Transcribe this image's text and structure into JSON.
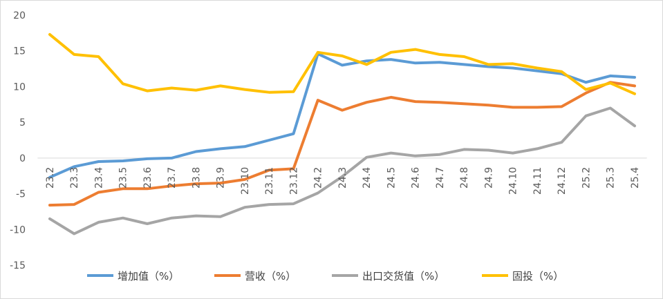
{
  "chart_data": {
    "type": "line",
    "categories": [
      "23.2",
      "23.3",
      "23.4",
      "23.5",
      "23.6",
      "23.7",
      "23.8",
      "23.9",
      "23.10",
      "23.11",
      "23.12",
      "24.2",
      "24.3",
      "24.4",
      "24.5",
      "24.6",
      "24.7",
      "24.8",
      "24.9",
      "24.10",
      "24.11",
      "24.12",
      "25.2",
      "25.3",
      "25.4"
    ],
    "ylim": [
      -15,
      20
    ],
    "yticks": [
      -15,
      -10,
      -5,
      0,
      5,
      10,
      15,
      20
    ],
    "grid": false,
    "legend_position": "bottom",
    "series": [
      {
        "name": "增加值（%）",
        "color": "#5b9bd5",
        "values": [
          -2.7,
          -1.2,
          -0.5,
          -0.4,
          -0.1,
          0.0,
          0.9,
          1.3,
          1.6,
          2.5,
          3.4,
          14.6,
          13.0,
          13.6,
          13.8,
          13.3,
          13.4,
          13.1,
          12.8,
          12.6,
          12.2,
          11.8,
          10.6,
          11.5,
          11.3
        ]
      },
      {
        "name": "营收（%）",
        "color": "#ed7d31",
        "values": [
          -6.6,
          -6.5,
          -4.8,
          -4.3,
          -4.3,
          -3.9,
          -3.6,
          -3.5,
          -3.0,
          -1.7,
          -1.5,
          8.1,
          6.7,
          7.8,
          8.5,
          7.9,
          7.8,
          7.6,
          7.4,
          7.1,
          7.1,
          7.2,
          9.1,
          10.6,
          10.1
        ]
      },
      {
        "name": "出口交货值（%）",
        "color": "#a5a5a5",
        "values": [
          -8.5,
          -10.6,
          -9.0,
          -8.4,
          -9.2,
          -8.4,
          -8.1,
          -8.2,
          -6.9,
          -6.5,
          -6.4,
          -4.9,
          -2.6,
          0.1,
          0.7,
          0.3,
          0.5,
          1.2,
          1.1,
          0.7,
          1.3,
          2.2,
          5.9,
          7.0,
          4.5
        ]
      },
      {
        "name": "固投（%）",
        "color": "#ffc000",
        "values": [
          17.3,
          14.5,
          14.2,
          10.4,
          9.4,
          9.8,
          9.5,
          10.1,
          9.6,
          9.2,
          9.3,
          14.8,
          14.3,
          13.1,
          14.8,
          15.2,
          14.5,
          14.2,
          13.1,
          13.2,
          12.6,
          12.1,
          9.6,
          10.5,
          9.0
        ]
      }
    ]
  }
}
